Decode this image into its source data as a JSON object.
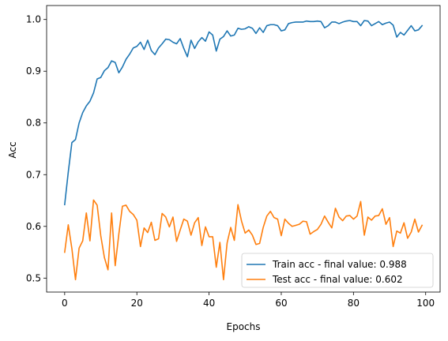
{
  "chart_data": {
    "type": "line",
    "title": "",
    "xlabel": "Epochs",
    "ylabel": "Acc",
    "xlim": [
      -5,
      104
    ],
    "ylim": [
      0.473,
      1.027
    ],
    "xticks": [
      0,
      20,
      40,
      60,
      80,
      100
    ],
    "yticks": [
      0.5,
      0.6,
      0.7,
      0.8,
      0.9,
      1.0
    ],
    "ytick_labels": [
      "0.5",
      "0.6",
      "0.7",
      "0.8",
      "0.9",
      "1.0"
    ],
    "grid": false,
    "legend_position": "lower-right",
    "series": [
      {
        "name": "Train acc - final value: 0.988",
        "color": "#1f77b4",
        "values": [
          0.642,
          0.705,
          0.762,
          0.768,
          0.8,
          0.82,
          0.833,
          0.842,
          0.858,
          0.885,
          0.888,
          0.901,
          0.907,
          0.92,
          0.917,
          0.897,
          0.908,
          0.923,
          0.933,
          0.945,
          0.948,
          0.956,
          0.942,
          0.96,
          0.94,
          0.932,
          0.945,
          0.953,
          0.962,
          0.961,
          0.956,
          0.953,
          0.963,
          0.944,
          0.928,
          0.96,
          0.944,
          0.957,
          0.965,
          0.958,
          0.976,
          0.97,
          0.939,
          0.962,
          0.967,
          0.978,
          0.968,
          0.97,
          0.983,
          0.981,
          0.982,
          0.986,
          0.983,
          0.973,
          0.984,
          0.975,
          0.988,
          0.99,
          0.99,
          0.988,
          0.978,
          0.98,
          0.992,
          0.994,
          0.995,
          0.995,
          0.995,
          0.997,
          0.996,
          0.996,
          0.997,
          0.996,
          0.984,
          0.988,
          0.995,
          0.995,
          0.992,
          0.995,
          0.997,
          0.998,
          0.996,
          0.996,
          0.988,
          0.998,
          0.997,
          0.988,
          0.992,
          0.996,
          0.99,
          0.993,
          0.995,
          0.989,
          0.966,
          0.975,
          0.97,
          0.979,
          0.988,
          0.978,
          0.98,
          0.988
        ]
      },
      {
        "name": "Test acc - final value: 0.602",
        "color": "#ff7f0e",
        "values": [
          0.55,
          0.603,
          0.557,
          0.497,
          0.558,
          0.572,
          0.626,
          0.572,
          0.651,
          0.641,
          0.582,
          0.54,
          0.516,
          0.626,
          0.524,
          0.585,
          0.639,
          0.641,
          0.629,
          0.623,
          0.612,
          0.561,
          0.597,
          0.588,
          0.608,
          0.573,
          0.576,
          0.625,
          0.618,
          0.599,
          0.618,
          0.571,
          0.593,
          0.614,
          0.61,
          0.583,
          0.607,
          0.617,
          0.563,
          0.599,
          0.58,
          0.58,
          0.521,
          0.569,
          0.497,
          0.568,
          0.598,
          0.573,
          0.642,
          0.61,
          0.587,
          0.593,
          0.583,
          0.565,
          0.567,
          0.598,
          0.62,
          0.629,
          0.617,
          0.614,
          0.582,
          0.614,
          0.606,
          0.6,
          0.602,
          0.604,
          0.61,
          0.609,
          0.585,
          0.59,
          0.594,
          0.604,
          0.62,
          0.608,
          0.597,
          0.635,
          0.618,
          0.611,
          0.62,
          0.621,
          0.614,
          0.62,
          0.648,
          0.583,
          0.618,
          0.612,
          0.62,
          0.621,
          0.634,
          0.604,
          0.617,
          0.561,
          0.591,
          0.587,
          0.607,
          0.577,
          0.589,
          0.614,
          0.589,
          0.602
        ]
      }
    ]
  }
}
